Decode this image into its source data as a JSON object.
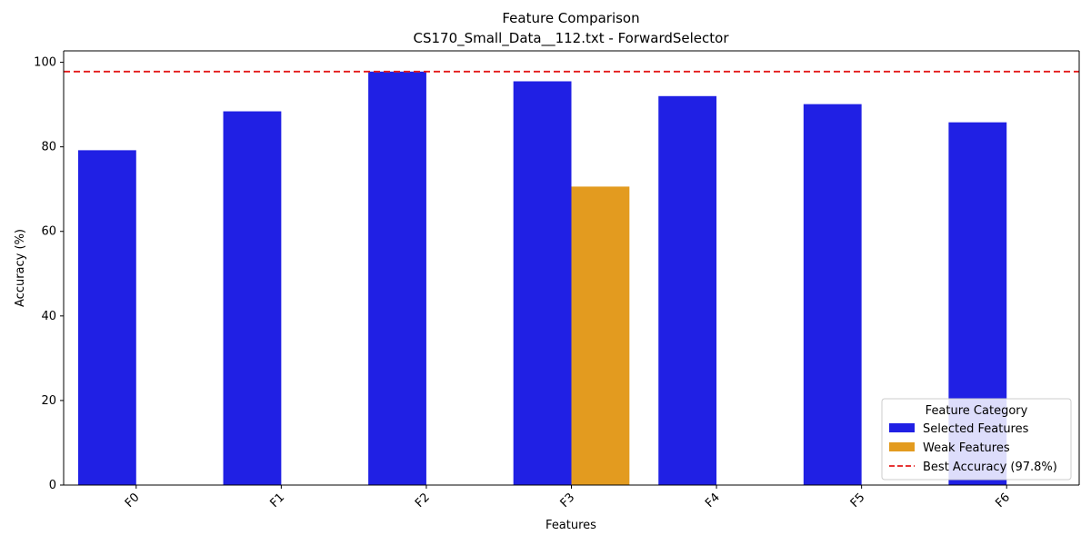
{
  "chart_data": {
    "type": "bar",
    "title": "Feature Comparison",
    "subtitle": "CS170_Small_Data__112.txt - ForwardSelector",
    "xlabel": "Features",
    "ylabel": "Accuracy (%)",
    "ylim": [
      0,
      102.7
    ],
    "yticks": [
      0,
      20,
      40,
      60,
      80,
      100
    ],
    "categories": [
      "F0",
      "F1",
      "F2",
      "F3",
      "F4",
      "F5",
      "F6"
    ],
    "series": [
      {
        "name": "Selected Features",
        "color": "#2020e4",
        "values": [
          79.2,
          88.4,
          97.8,
          95.5,
          92.0,
          90.1,
          85.8
        ]
      },
      {
        "name": "Weak Features",
        "color": "#e39b1f",
        "values": [
          null,
          null,
          null,
          70.6,
          null,
          null,
          null
        ]
      }
    ],
    "reference_line": {
      "name": "Best Accuracy (97.8%)",
      "value": 97.8,
      "color": "#e41a1a",
      "style": "dashed"
    },
    "legend": {
      "title": "Feature Category",
      "placement": "lower-right"
    },
    "grid": false
  }
}
